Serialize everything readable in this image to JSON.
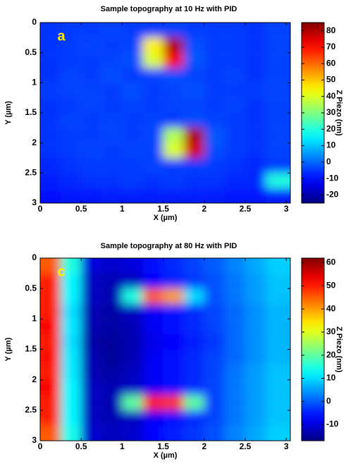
{
  "chart_data": [
    {
      "type": "heatmap",
      "title": "Sample topography at 10 Hz with PID",
      "x_label": "X (µm)",
      "y_label": "Y (µm)",
      "colorbar_label": "Z Piezo (nm)",
      "annotation": "a",
      "cmap": "jet",
      "y_reversed": true,
      "xlim": [
        0,
        3.05
      ],
      "ylim": [
        0,
        3
      ],
      "xticks": [
        0,
        0.5,
        1,
        1.5,
        2,
        2.5,
        3
      ],
      "yticks": [
        0,
        0.5,
        1,
        1.5,
        2,
        2.5,
        3
      ],
      "zlim": [
        -25,
        85
      ],
      "zticks": [
        -20,
        -10,
        0,
        10,
        20,
        30,
        40,
        50,
        60,
        70,
        80
      ],
      "z": [
        [
          -6,
          -5,
          -5,
          -4,
          -5,
          -5,
          -4,
          -5,
          -5,
          -5,
          -6,
          -4
        ],
        [
          -6,
          -5,
          -4,
          -5,
          -4,
          45,
          80,
          -3,
          -5,
          -5,
          -6,
          -4
        ],
        [
          -6,
          -5,
          -5,
          -4,
          -3,
          40,
          72,
          -2,
          -5,
          -5,
          -6,
          -4
        ],
        [
          -6,
          -4,
          -5,
          -3,
          -5,
          -4,
          -3,
          -4,
          -5,
          -4,
          -6,
          -4
        ],
        [
          -5,
          -4,
          -4,
          -5,
          -3,
          -5,
          -4,
          -3,
          -5,
          -5,
          -5,
          -4
        ],
        [
          -6,
          -5,
          -4,
          -5,
          -4,
          -5,
          -4,
          -4,
          -5,
          -4,
          -6,
          -4
        ],
        [
          -6,
          -4,
          -5,
          -4,
          -5,
          -4,
          -5,
          -3,
          -4,
          -5,
          -6,
          -4
        ],
        [
          -6,
          -5,
          -5,
          -4,
          -5,
          -4,
          35,
          80,
          -2,
          -5,
          -6,
          -4
        ],
        [
          -6,
          -5,
          -4,
          -5,
          -4,
          -4,
          40,
          76,
          -3,
          -5,
          -6,
          -4
        ],
        [
          -7,
          -6,
          -5,
          -5,
          -5,
          -4,
          -5,
          -5,
          -5,
          -6,
          -7,
          -5
        ],
        [
          -8,
          -7,
          -6,
          -6,
          -5,
          -6,
          -5,
          -6,
          -6,
          -7,
          -7,
          20
        ],
        [
          -10,
          -9,
          -9,
          -8,
          -8,
          -8,
          -8,
          -8,
          -8,
          -9,
          -9,
          -8
        ]
      ]
    },
    {
      "type": "heatmap",
      "title": "Sample topography at 80 Hz with PID",
      "x_label": "X (µm)",
      "y_label": "Y (µm)",
      "colorbar_label": "Z Piezo (nm)",
      "annotation": "c",
      "cmap": "jet",
      "y_reversed": true,
      "xlim": [
        0,
        3.05
      ],
      "ylim": [
        0,
        3
      ],
      "xticks": [
        0,
        0.5,
        1,
        1.5,
        2,
        2.5,
        3
      ],
      "yticks": [
        0,
        0.5,
        1,
        1.5,
        2,
        2.5,
        3
      ],
      "zlim": [
        -17,
        62
      ],
      "zticks": [
        -10,
        0,
        10,
        20,
        30,
        40,
        50,
        60
      ],
      "z": [
        [
          45,
          15,
          -10,
          -11,
          -10,
          -6,
          -4,
          -2,
          0,
          3,
          6,
          9
        ],
        [
          50,
          12,
          -12,
          -13,
          -12,
          -7,
          -5,
          -3,
          -1,
          2,
          5,
          8
        ],
        [
          50,
          12,
          -12,
          -13,
          15,
          45,
          40,
          10,
          -1,
          2,
          5,
          8
        ],
        [
          50,
          10,
          -13,
          -14,
          -12,
          -8,
          -6,
          -4,
          -2,
          1,
          4,
          7
        ],
        [
          52,
          11,
          -13,
          -14,
          -13,
          -8,
          -6,
          -4,
          -2,
          1,
          4,
          7
        ],
        [
          50,
          10,
          -14,
          -15,
          -13,
          -9,
          -7,
          -5,
          -3,
          1,
          4,
          7
        ],
        [
          51,
          11,
          -13,
          -15,
          -13,
          -8,
          -6,
          -4,
          -2,
          1,
          4,
          7
        ],
        [
          50,
          11,
          -13,
          -14,
          -12,
          -8,
          -6,
          -4,
          -2,
          2,
          5,
          8
        ],
        [
          52,
          12,
          -12,
          -13,
          -12,
          -8,
          -6,
          -4,
          -2,
          2,
          5,
          8
        ],
        [
          50,
          12,
          -12,
          -13,
          20,
          50,
          48,
          20,
          -2,
          2,
          5,
          8
        ],
        [
          50,
          12,
          -12,
          -13,
          -12,
          -8,
          -6,
          -4,
          -2,
          2,
          5,
          8
        ],
        [
          45,
          14,
          -11,
          -12,
          -11,
          -7,
          -5,
          -3,
          -1,
          3,
          6,
          9
        ]
      ]
    }
  ]
}
